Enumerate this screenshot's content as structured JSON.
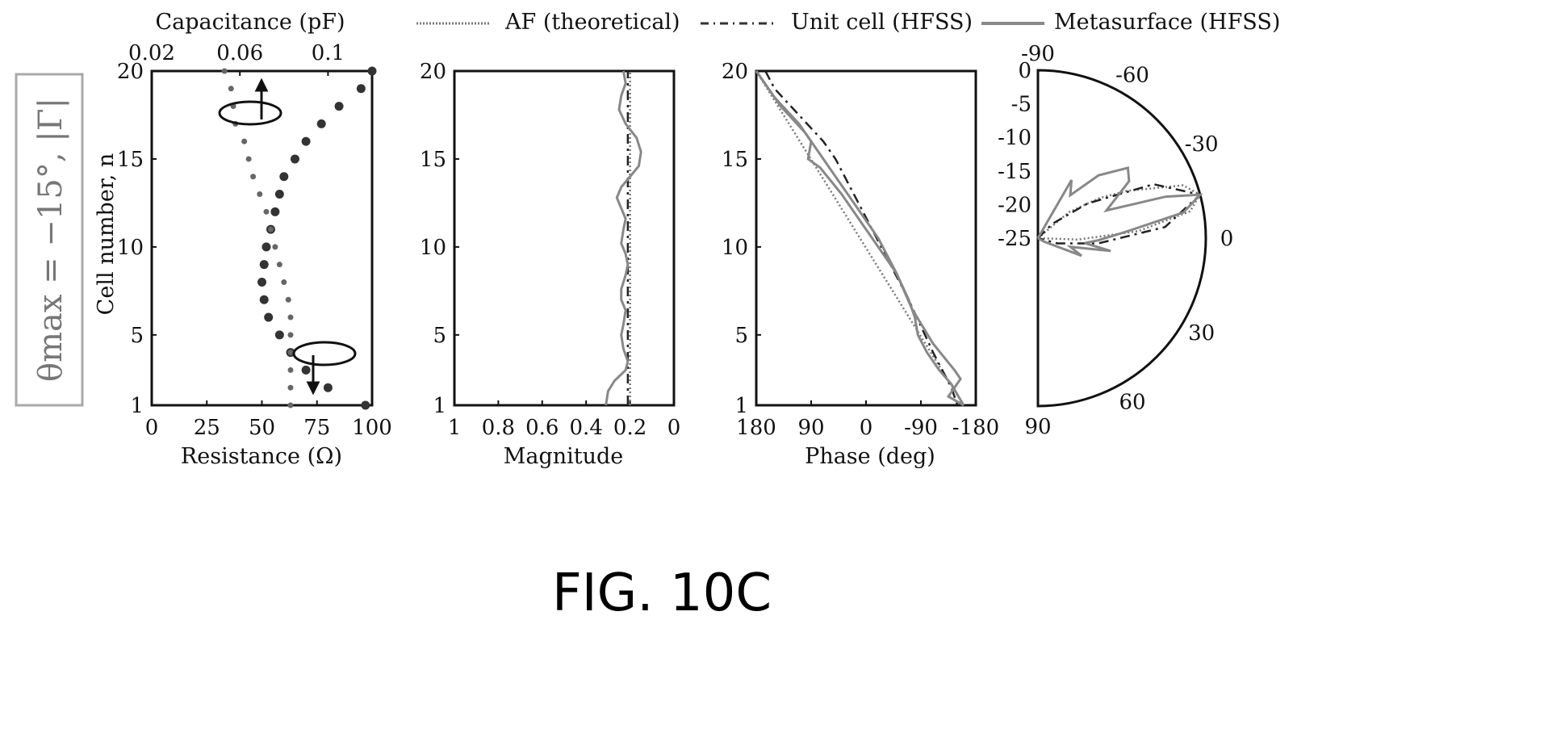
{
  "figure_label": "FIG. 10C",
  "side_label": "θmax = −15°, |Γ|",
  "legend": [
    {
      "label": "AF (theoretical)",
      "style": "dotted"
    },
    {
      "label": "Unit cell (HFSS)",
      "style": "dashdot"
    },
    {
      "label": "Metasurface (HFSS)",
      "style": "solid"
    }
  ],
  "colors": {
    "axis": "#111111",
    "series_af": "#777777",
    "series_unit": "#222222",
    "series_meta": "#888888",
    "side_label": "#888888"
  },
  "chart_data": [
    {
      "type": "scatter",
      "title": "",
      "xlabel": "Resistance (Ω)",
      "x2label": "Capacitance (pF)",
      "ylabel": "Cell number, n",
      "xlim": [
        0,
        100
      ],
      "x2lim": [
        0.02,
        0.12
      ],
      "ylim": [
        1,
        20
      ],
      "xticks": [
        "0",
        "25",
        "50",
        "75",
        "100"
      ],
      "x2ticks": [
        "0.02",
        "0.06",
        "0.1"
      ],
      "yticks": [
        "1",
        "5",
        "10",
        "15",
        "20"
      ],
      "series": [
        {
          "axis": "top",
          "marker": "dot",
          "points": [
            [
              0.12,
              20
            ],
            [
              0.115,
              19
            ],
            [
              0.105,
              18
            ],
            [
              0.097,
              17
            ],
            [
              0.09,
              16
            ],
            [
              0.085,
              15
            ],
            [
              0.08,
              14
            ],
            [
              0.078,
              13
            ],
            [
              0.076,
              12
            ],
            [
              0.074,
              11
            ],
            [
              0.072,
              10
            ],
            [
              0.071,
              9
            ],
            [
              0.07,
              8
            ],
            [
              0.071,
              7
            ],
            [
              0.073,
              6
            ],
            [
              0.078,
              5
            ],
            [
              0.083,
              4
            ],
            [
              0.09,
              3
            ],
            [
              0.1,
              2
            ],
            [
              0.117,
              1
            ]
          ]
        },
        {
          "axis": "bottom",
          "marker": "dot-small",
          "points": [
            [
              33,
              20
            ],
            [
              36,
              19
            ],
            [
              37,
              18
            ],
            [
              38,
              17
            ],
            [
              42,
              16
            ],
            [
              44,
              15
            ],
            [
              46,
              14
            ],
            [
              49,
              13
            ],
            [
              52,
              12
            ],
            [
              54,
              11
            ],
            [
              56,
              10
            ],
            [
              58,
              9
            ],
            [
              60,
              8
            ],
            [
              62,
              7
            ],
            [
              63,
              6
            ],
            [
              63,
              5
            ],
            [
              63,
              4
            ],
            [
              63,
              3
            ],
            [
              63,
              2
            ],
            [
              63,
              1
            ]
          ]
        }
      ]
    },
    {
      "type": "line",
      "title": "",
      "xlabel": "Magnitude",
      "ylabel": "",
      "xlim": [
        1,
        0
      ],
      "ylim": [
        1,
        20
      ],
      "xticks": [
        "1",
        "0.8",
        "0.6",
        "0.4",
        "0.2",
        "0"
      ],
      "yticks": [
        "1",
        "5",
        "10",
        "15",
        "20"
      ],
      "series": [
        {
          "style": "dotted",
          "points": [
            [
              0.2,
              1
            ],
            [
              0.2,
              20
            ]
          ]
        },
        {
          "style": "dashdot",
          "points": [
            [
              0.21,
              1
            ],
            [
              0.21,
              20
            ]
          ]
        },
        {
          "style": "solid",
          "points": [
            [
              0.31,
              1
            ],
            [
              0.3,
              1.8
            ],
            [
              0.27,
              2.4
            ],
            [
              0.22,
              3
            ],
            [
              0.21,
              3.5
            ],
            [
              0.23,
              4.2
            ],
            [
              0.24,
              5
            ],
            [
              0.23,
              5.6
            ],
            [
              0.22,
              6.4
            ],
            [
              0.24,
              7
            ],
            [
              0.24,
              7.6
            ],
            [
              0.22,
              8.4
            ],
            [
              0.21,
              9
            ],
            [
              0.22,
              9.6
            ],
            [
              0.24,
              10.2
            ],
            [
              0.23,
              11
            ],
            [
              0.22,
              11.6
            ],
            [
              0.24,
              12.2
            ],
            [
              0.26,
              12.8
            ],
            [
              0.24,
              13.4
            ],
            [
              0.2,
              14
            ],
            [
              0.16,
              14.6
            ],
            [
              0.15,
              15.4
            ],
            [
              0.17,
              16.2
            ],
            [
              0.22,
              17
            ],
            [
              0.25,
              17.8
            ],
            [
              0.24,
              18.6
            ],
            [
              0.22,
              19.3
            ],
            [
              0.23,
              20
            ]
          ]
        }
      ]
    },
    {
      "type": "line",
      "title": "",
      "xlabel": "Phase (deg)",
      "ylabel": "",
      "xlim": [
        180,
        -180
      ],
      "ylim": [
        1,
        20
      ],
      "xticks": [
        "180",
        "90",
        "0",
        "-90",
        "-180"
      ],
      "yticks": [
        "1",
        "5",
        "10",
        "15",
        "20"
      ],
      "series": [
        {
          "style": "dotted",
          "points": [
            [
              180,
              20
            ],
            [
              -160,
              1
            ]
          ]
        },
        {
          "style": "dashdot",
          "points": [
            [
              165,
              20
            ],
            [
              150,
              19
            ],
            [
              110,
              17.5
            ],
            [
              70,
              16
            ],
            [
              50,
              15
            ],
            [
              20,
              13
            ],
            [
              -10,
              11
            ],
            [
              -40,
              9
            ],
            [
              -70,
              7
            ],
            [
              -110,
              4
            ],
            [
              -140,
              2
            ],
            [
              -150,
              1
            ]
          ]
        },
        {
          "style": "solid",
          "points": [
            [
              180,
              20
            ],
            [
              150,
              18.5
            ],
            [
              110,
              17
            ],
            [
              90,
              16
            ],
            [
              95,
              15
            ],
            [
              75,
              14.5
            ],
            [
              40,
              13
            ],
            [
              10,
              11.5
            ],
            [
              -20,
              10
            ],
            [
              -50,
              8.5
            ],
            [
              -70,
              7
            ],
            [
              -80,
              6
            ],
            [
              -85,
              5
            ],
            [
              -100,
              4
            ],
            [
              -120,
              3
            ],
            [
              -140,
              2.2
            ],
            [
              -160,
              1
            ]
          ]
        },
        {
          "style": "solid",
          "points": [
            [
              180,
              20
            ],
            [
              140,
              18
            ],
            [
              100,
              16.5
            ],
            [
              90,
              16
            ],
            [
              60,
              14.5
            ],
            [
              20,
              12.5
            ],
            [
              -20,
              10.5
            ],
            [
              -50,
              8.5
            ],
            [
              -75,
              6.5
            ],
            [
              -110,
              4.5
            ],
            [
              -145,
              3
            ],
            [
              -155,
              2.5
            ],
            [
              -135,
              1.5
            ],
            [
              -160,
              1
            ]
          ]
        }
      ]
    },
    {
      "type": "line",
      "title": "",
      "polar": true,
      "angle_labels": [
        "-90",
        "-60",
        "-30",
        "0",
        "30",
        "60",
        "90"
      ],
      "radial_labels": [
        "0",
        "-5",
        "-10",
        "-15",
        "-20",
        "-25"
      ],
      "rlim_db": [
        -25,
        0
      ],
      "series": [
        {
          "style": "dotted",
          "pattern_db": [
            [
              -90,
              -25
            ],
            [
              -60,
              -25
            ],
            [
              -40,
              -19
            ],
            [
              -33,
              -14
            ],
            [
              -28,
              -10
            ],
            [
              -20,
              -2
            ],
            [
              -15,
              0
            ],
            [
              -10,
              -2
            ],
            [
              -4,
              -10
            ],
            [
              2,
              -19
            ],
            [
              6,
              -25
            ],
            [
              90,
              -25
            ]
          ]
        },
        {
          "style": "dashdot",
          "pattern_db": [
            [
              -90,
              -25
            ],
            [
              -45,
              -22
            ],
            [
              -35,
              -16
            ],
            [
              -25,
              -6
            ],
            [
              -15,
              0
            ],
            [
              -5,
              -6
            ],
            [
              5,
              -16
            ],
            [
              15,
              -22
            ],
            [
              90,
              -25
            ]
          ]
        },
        {
          "style": "solid",
          "pattern_db": [
            [
              -90,
              -25
            ],
            [
              -60,
              -15
            ],
            [
              -53,
              -17
            ],
            [
              -46,
              -12
            ],
            [
              -38,
              -8
            ],
            [
              -32,
              -9
            ],
            [
              -27,
              -12
            ],
            [
              -22,
              -14
            ],
            [
              -18,
              -5
            ],
            [
              -15,
              0
            ],
            [
              -10,
              -3
            ],
            [
              -4,
              -12
            ],
            [
              2,
              -16
            ],
            [
              6,
              -18
            ],
            [
              10,
              -14
            ],
            [
              15,
              -20
            ],
            [
              22,
              -18
            ],
            [
              30,
              -24
            ],
            [
              90,
              -25
            ]
          ]
        }
      ]
    }
  ]
}
